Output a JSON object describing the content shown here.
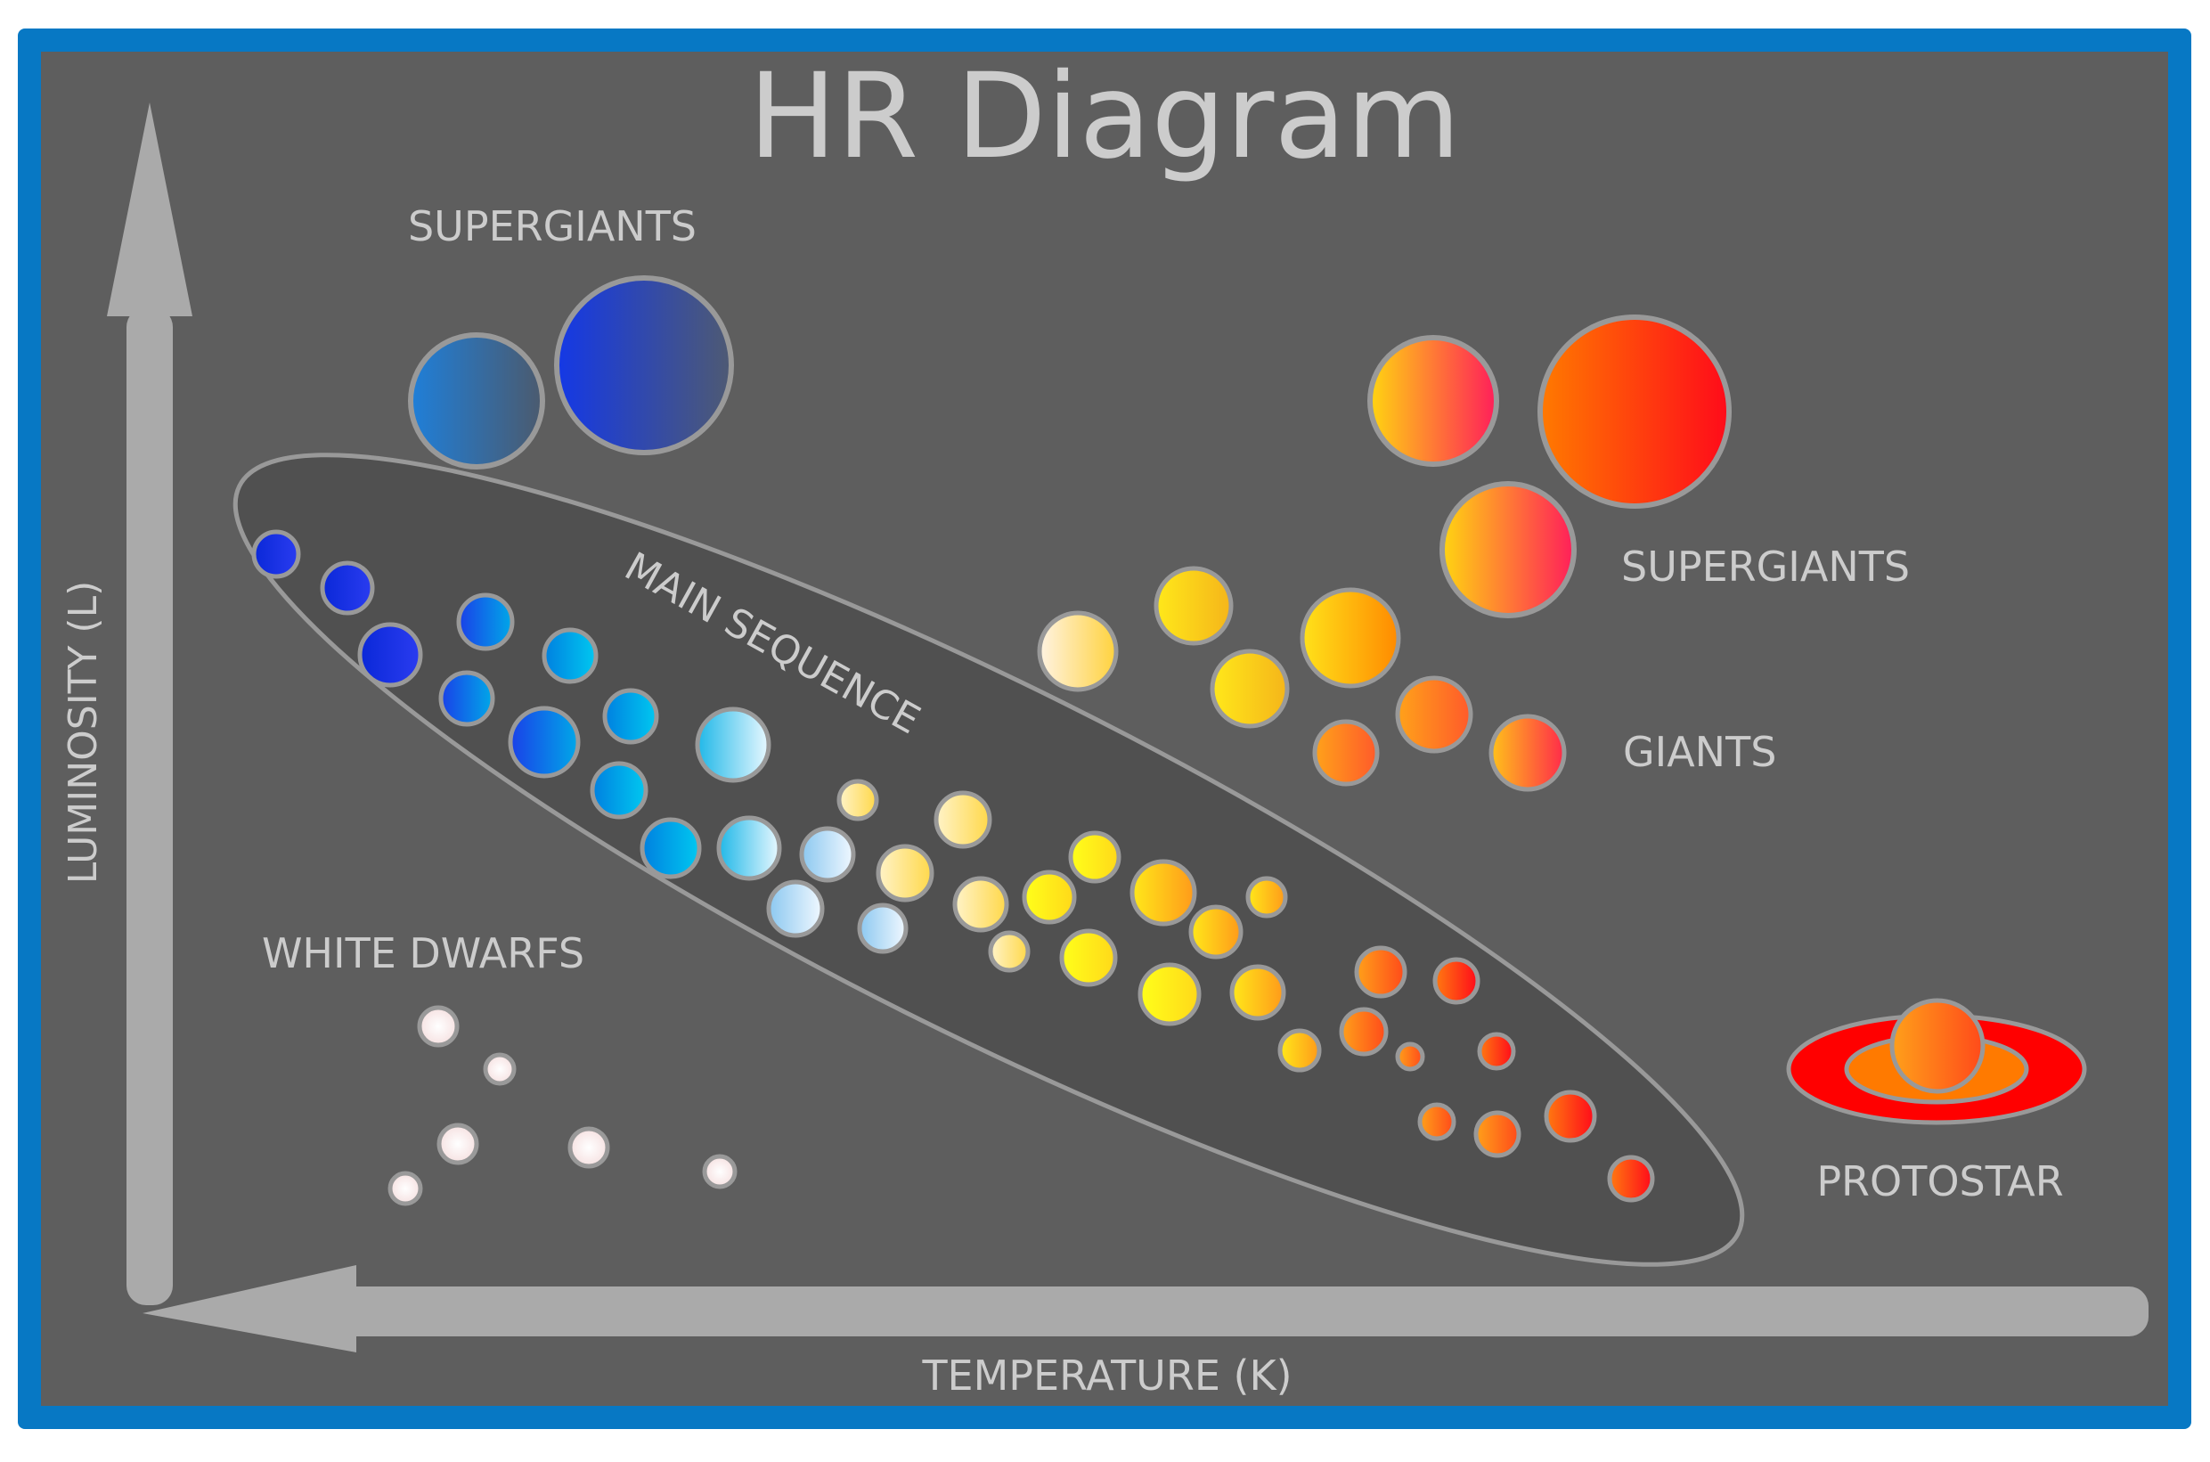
{
  "title": "HR Diagram",
  "axes": {
    "y_label": "LUMINOSITY (L)",
    "x_label": "TEMPERATURE (K)"
  },
  "regions": {
    "supergiants_blue": "SUPERGIANTS",
    "supergiants_red": "SUPERGIANTS",
    "giants": "GIANTS",
    "main_sequence": "MAIN SEQUENCE",
    "white_dwarfs": "WHITE DWARFS",
    "protostar": "PROTOSTAR"
  },
  "colors": {
    "frame": "#0778c4",
    "background": "#5e5e5e",
    "main_sequence_band": "#505050",
    "outline": "#999999",
    "axis": "#aaaaaa",
    "label_text": "#cccccc",
    "blue_star": "#1a2fe0",
    "cyan_star": "#00aee8",
    "yellow_star": "#fff200",
    "orange_star": "#ff7a00",
    "red_star": "#ff0a1a",
    "white_dwarf": "#fff0f0",
    "protostar_disk": "#ff0000"
  }
}
